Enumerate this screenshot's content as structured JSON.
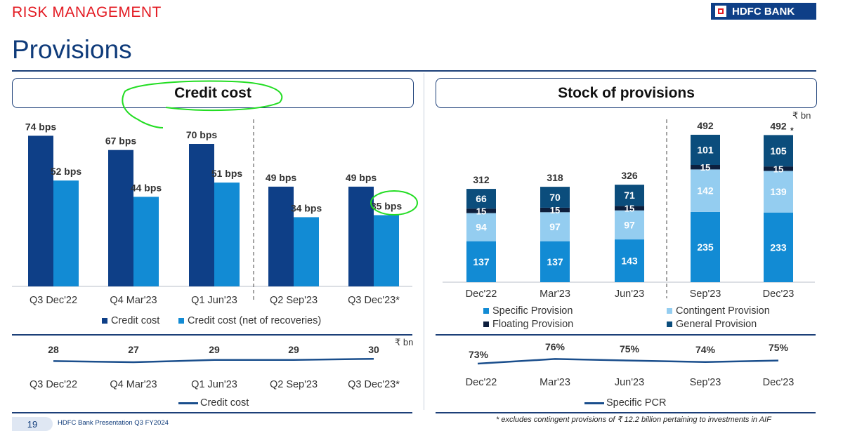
{
  "header": {
    "section": "RISK MANAGEMENT",
    "title": "Provisions",
    "logo": "HDFC BANK"
  },
  "credit_panel": {
    "title": "Credit cost",
    "legend": [
      "Credit cost",
      "Credit cost (net of recoveries)"
    ],
    "bottom_legend": "Credit cost",
    "unit": "₹ bn"
  },
  "provisions_panel": {
    "title": "Stock of provisions",
    "unit": "₹ bn",
    "legend": [
      "Specific Provision",
      "Contingent Provision",
      "Floating Provision",
      "General Provision"
    ],
    "bottom_legend": "Specific PCR",
    "total_marker": "*"
  },
  "colors": {
    "dark_blue": "#0e3f87",
    "mid_blue": "#128bd4",
    "light_blue": "#94cdf0",
    "navy": "#0d1f3d",
    "teal_navy": "#0b4d7c",
    "line": "#1a4e8c",
    "annotation_green": "#22dd22"
  },
  "footer": {
    "page_number": "19",
    "presentation": "HDFC Bank Presentation Q3 FY2024",
    "note": "* excludes contingent provisions of ₹ 12.2 billion pertaining to investments in AIF"
  },
  "chart_data": [
    {
      "type": "bar",
      "title": "Credit cost",
      "categories": [
        "Q3 Dec'22",
        "Q4 Mar'23",
        "Q1 Jun'23",
        "Q2 Sep'23",
        "Q3 Dec'23*"
      ],
      "series": [
        {
          "name": "Credit cost",
          "values": [
            74,
            67,
            70,
            49,
            49
          ],
          "labels": [
            "74 bps",
            "67 bps",
            "70 bps",
            "49 bps",
            "49 bps"
          ]
        },
        {
          "name": "Credit cost (net of recoveries)",
          "values": [
            52,
            44,
            51,
            34,
            35
          ],
          "labels": [
            "52 bps",
            "44 bps",
            "51 bps",
            "34 bps",
            "35 bps"
          ]
        }
      ],
      "ylabel": "bps",
      "ylim": [
        0,
        80
      ]
    },
    {
      "type": "line",
      "title": "Credit cost",
      "categories": [
        "Q3 Dec'22",
        "Q4 Mar'23",
        "Q1 Jun'23",
        "Q2 Sep'23",
        "Q3 Dec'23*"
      ],
      "series": [
        {
          "name": "Credit cost",
          "values": [
            28,
            27,
            29,
            29,
            30
          ]
        }
      ],
      "ylabel": "₹ bn"
    },
    {
      "type": "bar",
      "stacked": true,
      "title": "Stock of provisions",
      "categories": [
        "Dec'22",
        "Mar'23",
        "Jun'23",
        "Sep'23",
        "Dec'23"
      ],
      "series": [
        {
          "name": "Specific Provision",
          "values": [
            137,
            137,
            143,
            235,
            233
          ]
        },
        {
          "name": "Contingent Provision",
          "values": [
            94,
            97,
            97,
            142,
            139
          ]
        },
        {
          "name": "Floating Provision",
          "values": [
            15,
            15,
            15,
            15,
            15
          ]
        },
        {
          "name": "General Provision",
          "values": [
            66,
            70,
            71,
            101,
            105
          ]
        }
      ],
      "totals": [
        "312",
        "318",
        "326",
        "492",
        "492"
      ],
      "ylabel": "₹ bn",
      "ylim": [
        0,
        520
      ]
    },
    {
      "type": "line",
      "title": "Specific PCR",
      "categories": [
        "Dec'22",
        "Mar'23",
        "Jun'23",
        "Sep'23",
        "Dec'23"
      ],
      "series": [
        {
          "name": "Specific PCR",
          "values": [
            73,
            76,
            75,
            74,
            75
          ],
          "labels": [
            "73%",
            "76%",
            "75%",
            "74%",
            "75%"
          ]
        }
      ]
    }
  ]
}
